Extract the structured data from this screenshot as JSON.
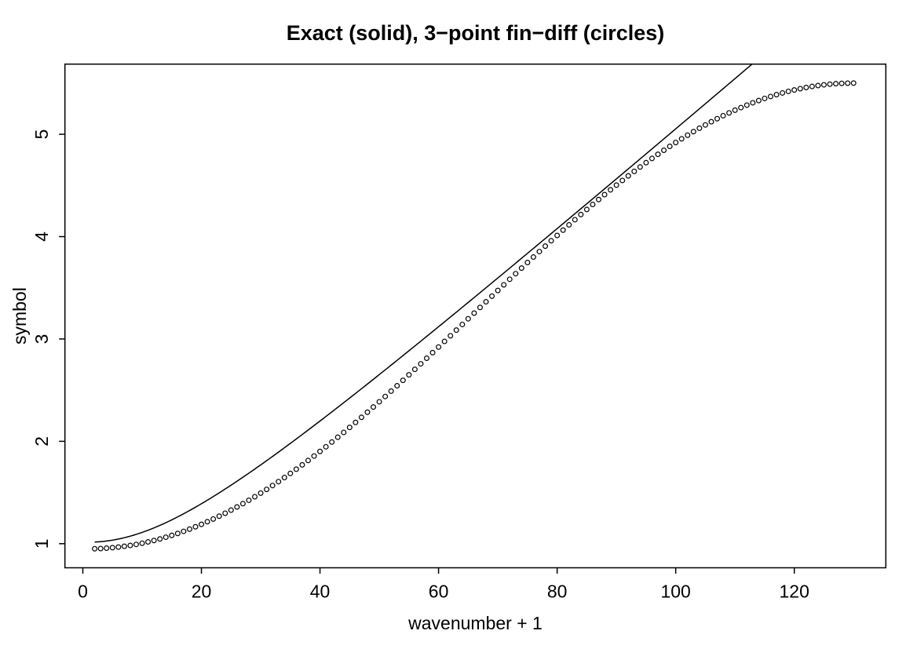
{
  "chart_data": {
    "type": "line+scatter",
    "title": "Exact (solid), 3−point fin−diff (circles)",
    "xlabel": "wavenumber + 1",
    "ylabel": "symbol",
    "background_color": "#ffffff",
    "foreground_color": "#000000",
    "grid": false,
    "frame": "full box, ticks on bottom and left only",
    "xlim": [
      -3.02,
      135.44
    ],
    "ylim": [
      0.7646,
      5.6854
    ],
    "x_ticks": {
      "values": [
        0,
        20,
        40,
        60,
        80,
        100,
        120
      ],
      "labels": [
        "0",
        "20",
        "40",
        "60",
        "80",
        "100",
        "120"
      ]
    },
    "y_ticks": {
      "values": [
        1,
        2,
        3,
        4,
        5
      ],
      "labels": [
        "1",
        "2",
        "3",
        "4",
        "5"
      ]
    },
    "series": [
      {
        "name": "Exact",
        "style": "solid line",
        "color": "#000000",
        "line_width": 1.5,
        "x_range": [
          2,
          130
        ],
        "x_step": 0.5,
        "clipped_at_top": true,
        "generator": {
          "kind": "sqrt_quad",
          "m2": 1.03,
          "c": 0.05,
          "x_offset": 1
        },
        "sample_points": {
          "x": [
            2,
            20,
            40,
            60,
            80,
            100,
            112.5
          ],
          "y": [
            1.02,
            1.39,
            2.16,
            3.12,
            4.08,
            5.05,
            5.69
          ]
        }
      },
      {
        "name": "3−point fin−diff",
        "style": "open circles",
        "color": "#000000",
        "marker": "circle-open",
        "marker_radius_px": 2.9,
        "n_points": 129,
        "x_range": [
          2,
          130
        ],
        "x_step": 1,
        "generator": {
          "kind": "raised_cos",
          "base": 0.95,
          "amp": 2.275,
          "half_period": 129,
          "x_offset": 1
        },
        "sample_points": {
          "x": [
            2,
            20,
            40,
            60,
            80,
            100,
            120,
            130
          ],
          "y": [
            0.95,
            1.19,
            1.9,
            2.92,
            4.01,
            4.92,
            5.43,
            5.5
          ]
        }
      }
    ]
  }
}
